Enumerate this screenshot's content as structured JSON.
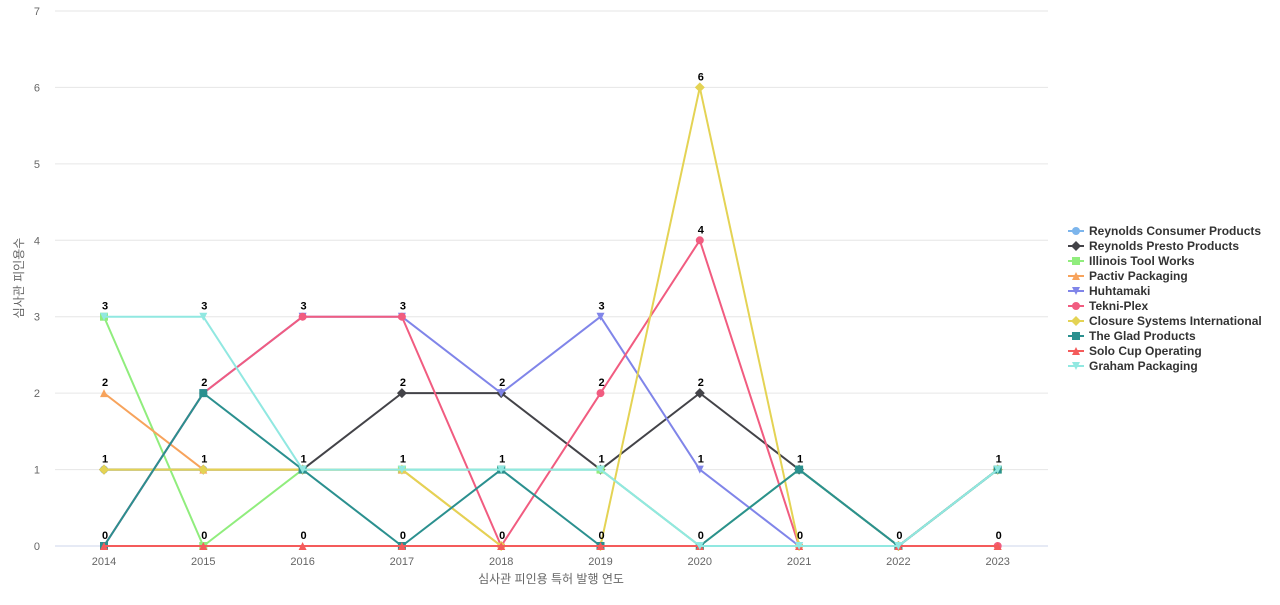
{
  "chart_data": {
    "type": "line",
    "title": "",
    "xlabel": "심사관 피인용 특허 발행 연도",
    "ylabel": "심사관 피인용수",
    "x": [
      2014,
      2015,
      2016,
      2017,
      2018,
      2019,
      2020,
      2021,
      2022,
      2023
    ],
    "ylim": [
      0,
      7
    ],
    "yticks": [
      0,
      1,
      2,
      3,
      4,
      5,
      6,
      7
    ],
    "grid": true,
    "legend_position": "right",
    "series": [
      {
        "name": "Reynolds Consumer Products",
        "color": "#7cb5ec",
        "marker": "circle",
        "values": [
          1,
          1,
          1,
          1,
          1,
          1,
          0,
          0,
          0,
          1
        ]
      },
      {
        "name": "Reynolds Presto Products",
        "color": "#434348",
        "marker": "diamond",
        "values": [
          1,
          1,
          1,
          2,
          2,
          1,
          2,
          1,
          0,
          1
        ]
      },
      {
        "name": "Illinois Tool Works",
        "color": "#90ed7d",
        "marker": "square",
        "values": [
          3,
          0,
          1,
          1,
          1,
          1,
          0,
          1,
          0,
          1
        ]
      },
      {
        "name": "Pactiv Packaging",
        "color": "#f7a35c",
        "marker": "triangle",
        "values": [
          2,
          1,
          1,
          1,
          0,
          0,
          0,
          0,
          0,
          0
        ]
      },
      {
        "name": "Huhtamaki",
        "color": "#8085e9",
        "marker": "triangle-down",
        "values": [
          0,
          2,
          3,
          3,
          2,
          3,
          1,
          0,
          0,
          1
        ]
      },
      {
        "name": "Tekni-Plex",
        "color": "#f15c80",
        "marker": "circle",
        "values": [
          0,
          2,
          3,
          3,
          0,
          2,
          4,
          0,
          0,
          0
        ]
      },
      {
        "name": "Closure Systems International",
        "color": "#e4d354",
        "marker": "diamond",
        "values": [
          1,
          1,
          1,
          1,
          0,
          0,
          6,
          0,
          0,
          1
        ]
      },
      {
        "name": "The Glad Products",
        "color": "#2b908f",
        "marker": "square",
        "values": [
          0,
          2,
          1,
          0,
          1,
          0,
          0,
          1,
          0,
          1
        ]
      },
      {
        "name": "Solo Cup Operating",
        "color": "#f45b5b",
        "marker": "triangle",
        "values": [
          0,
          0,
          0,
          0,
          0,
          0,
          0,
          0,
          0,
          0
        ]
      },
      {
        "name": "Graham Packaging",
        "color": "#91e8e1",
        "marker": "triangle-down",
        "values": [
          3,
          3,
          1,
          1,
          1,
          1,
          0,
          0,
          0,
          1
        ]
      }
    ],
    "data_labels": [
      {
        "x": 2014,
        "values": [
          3,
          2,
          1,
          0
        ]
      },
      {
        "x": 2015,
        "values": [
          3,
          2,
          1,
          0
        ]
      },
      {
        "x": 2016,
        "values": [
          3,
          1,
          0
        ]
      },
      {
        "x": 2017,
        "values": [
          3,
          2,
          1,
          0
        ]
      },
      {
        "x": 2018,
        "values": [
          2,
          1,
          0
        ]
      },
      {
        "x": 2019,
        "values": [
          3,
          2,
          1,
          0
        ]
      },
      {
        "x": 2020,
        "values": [
          6,
          4,
          2,
          1,
          0
        ]
      },
      {
        "x": 2021,
        "values": [
          1,
          0
        ]
      },
      {
        "x": 2022,
        "values": [
          0
        ]
      },
      {
        "x": 2023,
        "values": [
          1,
          0
        ]
      }
    ]
  }
}
